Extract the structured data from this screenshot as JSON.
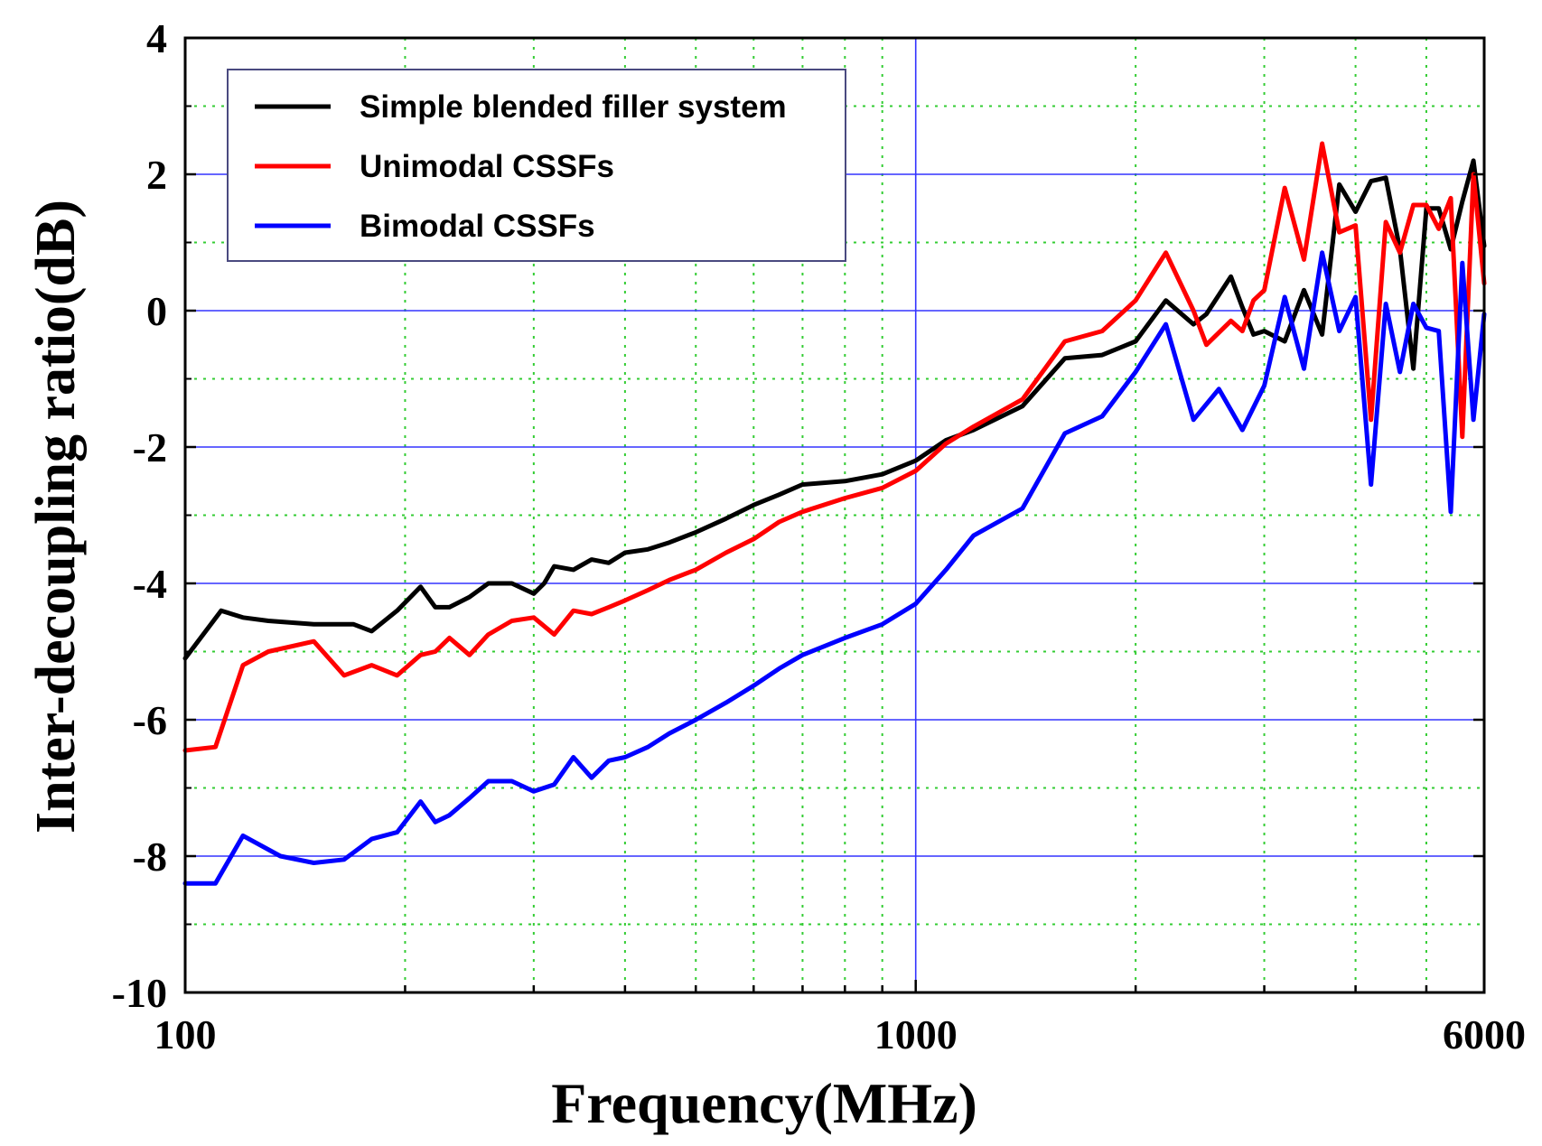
{
  "chart_data": {
    "type": "line",
    "title": "",
    "xlabel": "Frequency(MHz)",
    "ylabel": "Inter-decoupling ratio(dB)",
    "xscale": "log",
    "xlim": [
      100,
      6000
    ],
    "ylim": [
      -10,
      4
    ],
    "xticks": [
      {
        "value": 100,
        "label": "100"
      },
      {
        "value": 1000,
        "label": "1000"
      },
      {
        "value": 6000,
        "label": "6000"
      }
    ],
    "yticks": [
      {
        "value": 4,
        "label": "4"
      },
      {
        "value": 2,
        "label": "2"
      },
      {
        "value": 0,
        "label": "0"
      },
      {
        "value": -2,
        "label": "-2"
      },
      {
        "value": -4,
        "label": "-4"
      },
      {
        "value": -6,
        "label": "-6"
      },
      {
        "value": -8,
        "label": "-8"
      },
      {
        "value": -10,
        "label": "-10"
      }
    ],
    "grid": {
      "major": true,
      "minor": true,
      "major_color": "#3333ff",
      "minor_color": "#33cc33"
    },
    "legend_position": "top-left",
    "series": [
      {
        "name": "Simple blended filler system",
        "color": "#000000",
        "x": [
          100,
          112,
          120,
          130,
          150,
          170,
          180,
          195,
          210,
          220,
          230,
          245,
          260,
          280,
          300,
          310,
          320,
          340,
          360,
          380,
          400,
          430,
          460,
          500,
          550,
          600,
          650,
          700,
          800,
          900,
          1000,
          1100,
          1200,
          1400,
          1600,
          1800,
          2000,
          2200,
          2400,
          2500,
          2700,
          2800,
          2900,
          3000,
          3200,
          3400,
          3600,
          3800,
          4000,
          4200,
          4400,
          4600,
          4800,
          5000,
          5200,
          5400,
          5600,
          5800,
          6000
        ],
        "y": [
          -5.1,
          -4.4,
          -4.5,
          -4.55,
          -4.6,
          -4.6,
          -4.7,
          -4.4,
          -4.05,
          -4.35,
          -4.35,
          -4.2,
          -4.0,
          -4.0,
          -4.15,
          -4.0,
          -3.75,
          -3.8,
          -3.65,
          -3.7,
          -3.55,
          -3.5,
          -3.4,
          -3.25,
          -3.05,
          -2.85,
          -2.7,
          -2.55,
          -2.5,
          -2.4,
          -2.2,
          -1.9,
          -1.75,
          -1.4,
          -0.7,
          -0.65,
          -0.45,
          0.15,
          -0.2,
          -0.05,
          0.5,
          0.05,
          -0.35,
          -0.3,
          -0.45,
          0.3,
          -0.35,
          1.85,
          1.45,
          1.9,
          1.95,
          0.9,
          -0.85,
          1.5,
          1.5,
          0.9,
          1.6,
          2.2,
          0.95
        ]
      },
      {
        "name": "Unimodal CSSFs",
        "color": "#ff0000",
        "x": [
          100,
          110,
          120,
          130,
          150,
          165,
          180,
          195,
          210,
          220,
          230,
          245,
          260,
          280,
          300,
          320,
          340,
          360,
          380,
          400,
          430,
          460,
          500,
          550,
          600,
          650,
          700,
          800,
          900,
          1000,
          1100,
          1200,
          1400,
          1600,
          1800,
          2000,
          2200,
          2400,
          2500,
          2700,
          2800,
          2900,
          3000,
          3200,
          3400,
          3600,
          3800,
          4000,
          4200,
          4400,
          4600,
          4800,
          5000,
          5200,
          5400,
          5600,
          5800,
          6000
        ],
        "y": [
          -6.45,
          -6.4,
          -5.2,
          -5.0,
          -4.85,
          -5.35,
          -5.2,
          -5.35,
          -5.05,
          -5.0,
          -4.8,
          -5.05,
          -4.75,
          -4.55,
          -4.5,
          -4.75,
          -4.4,
          -4.45,
          -4.35,
          -4.25,
          -4.1,
          -3.95,
          -3.8,
          -3.55,
          -3.35,
          -3.1,
          -2.95,
          -2.75,
          -2.6,
          -2.35,
          -1.95,
          -1.7,
          -1.3,
          -0.45,
          -0.3,
          0.15,
          0.85,
          0.0,
          -0.5,
          -0.15,
          -0.3,
          0.15,
          0.3,
          1.8,
          0.75,
          2.45,
          1.15,
          1.25,
          -1.6,
          1.3,
          0.85,
          1.55,
          1.55,
          1.2,
          1.65,
          -1.85,
          2.0,
          0.4
        ]
      },
      {
        "name": "Bimodal CSSFs",
        "color": "#0000ff",
        "x": [
          100,
          110,
          120,
          135,
          150,
          165,
          180,
          195,
          210,
          220,
          230,
          245,
          260,
          280,
          300,
          320,
          340,
          360,
          380,
          400,
          430,
          460,
          500,
          550,
          600,
          650,
          700,
          800,
          900,
          1000,
          1100,
          1200,
          1400,
          1600,
          1800,
          2000,
          2200,
          2400,
          2600,
          2800,
          3000,
          3200,
          3400,
          3600,
          3800,
          4000,
          4200,
          4400,
          4600,
          4800,
          5000,
          5200,
          5400,
          5600,
          5800,
          6000
        ],
        "y": [
          -8.4,
          -8.4,
          -7.7,
          -8.0,
          -8.1,
          -8.05,
          -7.75,
          -7.65,
          -7.2,
          -7.5,
          -7.4,
          -7.15,
          -6.9,
          -6.9,
          -7.05,
          -6.95,
          -6.55,
          -6.85,
          -6.6,
          -6.55,
          -6.4,
          -6.2,
          -6.0,
          -5.75,
          -5.5,
          -5.25,
          -5.05,
          -4.8,
          -4.6,
          -4.3,
          -3.8,
          -3.3,
          -2.9,
          -1.8,
          -1.55,
          -0.9,
          -0.2,
          -1.6,
          -1.15,
          -1.75,
          -1.1,
          0.2,
          -0.85,
          0.85,
          -0.3,
          0.2,
          -2.55,
          0.1,
          -0.9,
          0.1,
          -0.25,
          -0.3,
          -2.95,
          0.7,
          -1.6,
          -0.05
        ]
      }
    ]
  }
}
